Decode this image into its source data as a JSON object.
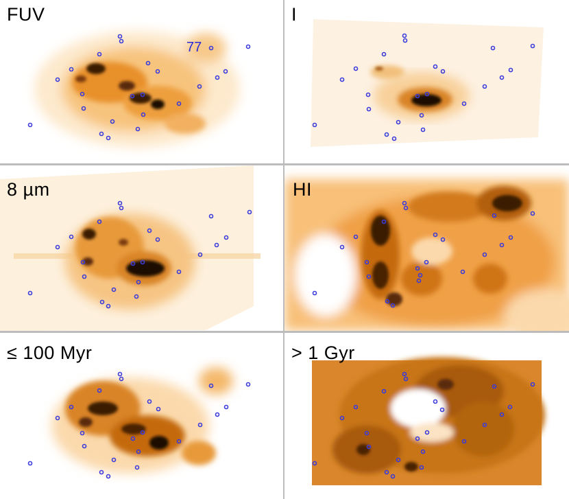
{
  "panels": [
    {
      "id": "fuv",
      "label": "FUV",
      "annotation": "77"
    },
    {
      "id": "i",
      "label": "I"
    },
    {
      "id": "8um",
      "label": "8 µm"
    },
    {
      "id": "hi",
      "label": "HI"
    },
    {
      "id": "young",
      "label": "≤ 100 Myr"
    },
    {
      "id": "old",
      "label": "> 1 Gyr"
    }
  ],
  "colors": {
    "marker": "#3b3bdc",
    "annotation": "#2a2ad8",
    "light": "#fbe3bf",
    "mid": "#f0a040",
    "dark": "#c46a10",
    "darkest": "#3a1a06",
    "divider": "#bcbcbc"
  }
}
